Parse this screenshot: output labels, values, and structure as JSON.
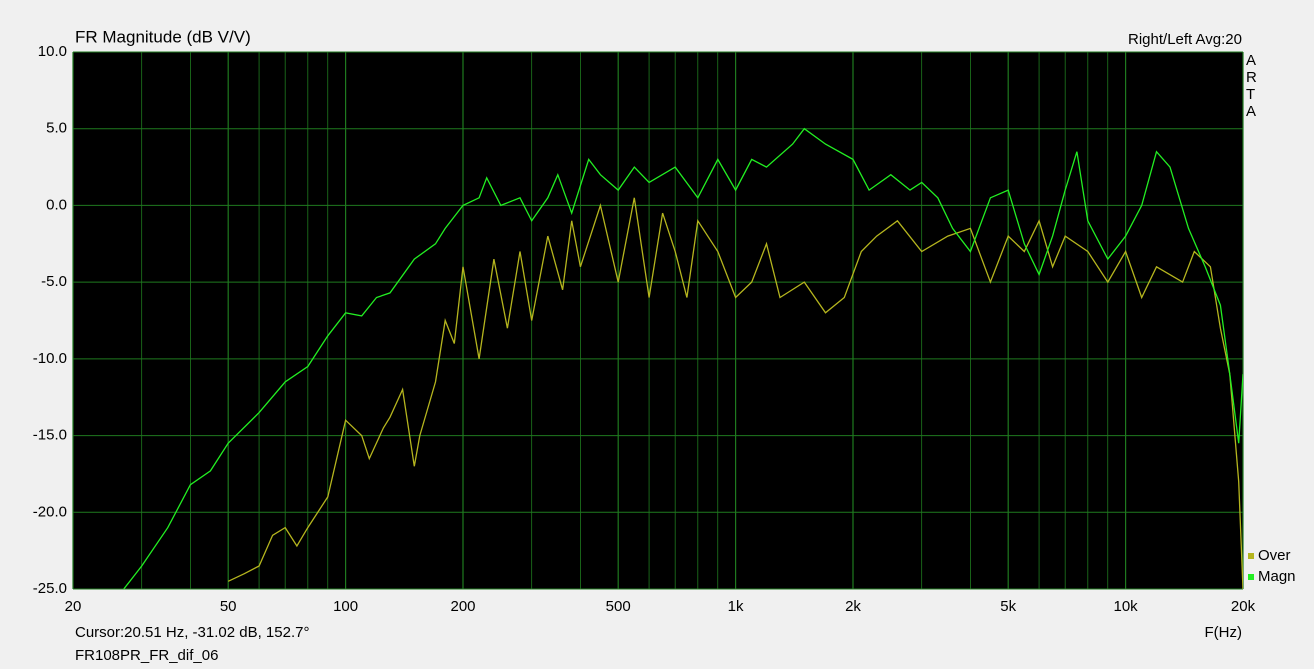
{
  "chart_data": {
    "type": "line",
    "title": "FR Magnitude (dB V/V)",
    "subtitle": "Right/Left  Avg:20",
    "side_label": "ARTA",
    "x_label": "F(Hz)",
    "cursor_text": "Cursor:20.51 Hz, -31.02 dB, 152.7°",
    "file_name": "FR108PR_FR_dif_06",
    "x_scale": "log",
    "grid": true,
    "legend_position": "bottom-right",
    "xlim": [
      20,
      20000
    ],
    "ylim": [
      -25,
      10
    ],
    "xticks": [
      20,
      50,
      100,
      200,
      500,
      {
        "value": 1000,
        "label": "1k"
      },
      {
        "value": 2000,
        "label": "2k"
      },
      {
        "value": 5000,
        "label": "5k"
      },
      {
        "value": 10000,
        "label": "10k"
      },
      {
        "value": 20000,
        "label": "20k"
      }
    ],
    "x_minor_ticks": [
      30,
      40,
      60,
      70,
      80,
      90,
      300,
      400,
      600,
      700,
      800,
      900,
      3000,
      4000,
      6000,
      7000,
      8000,
      9000
    ],
    "yticks": [
      {
        "value": 10,
        "label": "10.0"
      },
      {
        "value": 5,
        "label": "5.0"
      },
      {
        "value": 0,
        "label": "0.0"
      },
      {
        "value": -5,
        "label": "-5.0"
      },
      {
        "value": -10,
        "label": "-10.0"
      },
      {
        "value": -15,
        "label": "-15.0"
      },
      {
        "value": -20,
        "label": "-20.0"
      },
      {
        "value": -25,
        "label": "-25.0"
      }
    ],
    "series": [
      {
        "name": "Over",
        "color": "#b5b51e",
        "x": [
          50,
          55,
          60,
          65,
          70,
          75,
          80,
          90,
          100,
          110,
          115,
          125,
          130,
          140,
          150,
          155,
          170,
          180,
          190,
          200,
          220,
          240,
          260,
          280,
          300,
          330,
          360,
          380,
          400,
          450,
          500,
          550,
          600,
          650,
          700,
          750,
          800,
          900,
          1000,
          1100,
          1200,
          1300,
          1500,
          1700,
          1900,
          2100,
          2300,
          2600,
          3000,
          3500,
          4000,
          4500,
          5000,
          5500,
          6000,
          6500,
          7000,
          8000,
          9000,
          10000,
          11000,
          12000,
          14000,
          15000,
          16500,
          17500,
          18500,
          19500,
          20000
        ],
        "values": [
          -24.5,
          -24,
          -23.5,
          -21.5,
          -21,
          -22.2,
          -21,
          -19,
          -14,
          -15,
          -16.5,
          -14.5,
          -13.8,
          -12,
          -17,
          -15,
          -11.5,
          -7.5,
          -9,
          -4,
          -10,
          -3.5,
          -8,
          -3,
          -7.5,
          -2,
          -5.5,
          -1,
          -4,
          0,
          -5,
          0.5,
          -6,
          -0.5,
          -3,
          -6,
          -1,
          -3,
          -6,
          -5,
          -2.5,
          -6,
          -5,
          -7,
          -6,
          -3,
          -2,
          -1,
          -3,
          -2,
          -1.5,
          -5,
          -2,
          -3,
          -1,
          -4,
          -2,
          -3,
          -5,
          -3,
          -6,
          -4,
          -5,
          -3,
          -4,
          -8,
          -11,
          -18,
          -25
        ]
      },
      {
        "name": "Magn",
        "color": "#22ee22",
        "x": [
          27,
          30,
          35,
          40,
          45,
          50,
          60,
          70,
          80,
          90,
          100,
          110,
          120,
          130,
          150,
          170,
          180,
          200,
          220,
          230,
          250,
          280,
          300,
          330,
          350,
          380,
          420,
          450,
          500,
          550,
          600,
          700,
          800,
          900,
          1000,
          1100,
          1200,
          1400,
          1500,
          1700,
          2000,
          2200,
          2500,
          2800,
          3000,
          3300,
          3600,
          4000,
          4500,
          5000,
          5500,
          6000,
          6500,
          7000,
          7500,
          8000,
          9000,
          10000,
          11000,
          12000,
          13000,
          14500,
          16000,
          17500,
          18500,
          19500,
          20000
        ],
        "values": [
          -25,
          -23.5,
          -21,
          -18.2,
          -17.3,
          -15.5,
          -13.5,
          -11.5,
          -10.5,
          -8.5,
          -7,
          -7.2,
          -6,
          -5.7,
          -3.5,
          -2.5,
          -1.5,
          0,
          0.5,
          1.8,
          0,
          0.5,
          -1,
          0.5,
          2,
          -0.5,
          3,
          2,
          1,
          2.5,
          1.5,
          2.5,
          0.5,
          3,
          1,
          3,
          2.5,
          4,
          5,
          4,
          3,
          1,
          2,
          1,
          1.5,
          0.5,
          -1.5,
          -3,
          0.5,
          1,
          -2.5,
          -4.5,
          -2,
          1,
          3.5,
          -1,
          -3.5,
          -2,
          0,
          3.5,
          2.5,
          -1.5,
          -4,
          -6.5,
          -11,
          -15.5,
          -11
        ]
      }
    ]
  }
}
